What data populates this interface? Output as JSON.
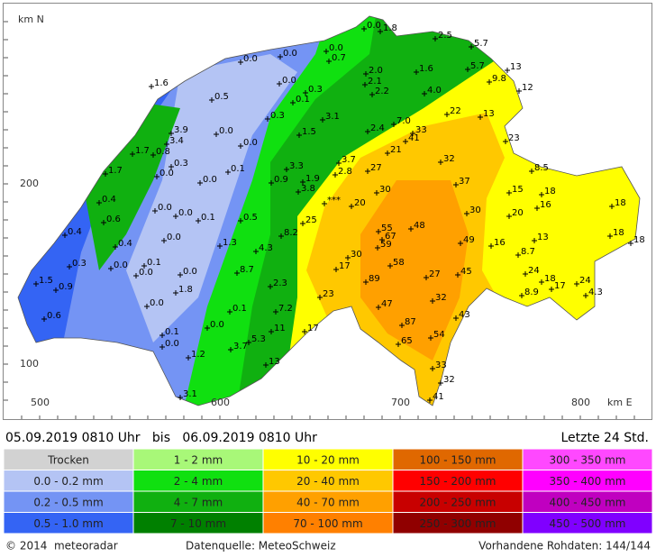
{
  "axes": {
    "north_label": "km N",
    "east_label": "km E",
    "y_ticks": [
      "200",
      "100"
    ],
    "x_ticks": [
      "500",
      "600",
      "700",
      "800"
    ]
  },
  "stations": [
    "0.0",
    "1.8",
    "2.5",
    "5.7",
    "0.0",
    "0.7",
    "0.0",
    "0.0",
    "2.0",
    "1.6",
    "5.7",
    "13",
    "9.8",
    "2.1",
    "12",
    "0.0",
    "0.3",
    "2.2",
    "4.0",
    "1.6",
    "0.5",
    "0.1",
    "22",
    "13",
    "0.3",
    "3.1",
    "7.0",
    "3.9",
    "3.4",
    "0.0",
    "0.0",
    "1.5",
    "2.4",
    "33",
    "41",
    "23",
    "1.7",
    "0.8",
    "0.3",
    "0.0",
    "21",
    "32",
    "8.5",
    "0.1",
    "3.3",
    "3.7",
    "27",
    "1.7",
    "0.0",
    "0.9",
    "1.9",
    "2.8",
    "37",
    "3.8",
    "15",
    "18",
    "30",
    "***",
    "0.4",
    "0.0",
    "20",
    "16",
    "18",
    "0.0",
    "0.1",
    "0.5",
    "0.6",
    "25",
    "30",
    "20",
    "55",
    "67",
    "48",
    "59",
    "0.4",
    "0.0",
    "8.2",
    "1.3",
    "49",
    "16",
    "13",
    "18",
    "18",
    "0.4",
    "4.3",
    "30",
    "8.7",
    "0.3",
    "0.0",
    "0.1",
    "17",
    "58",
    "8.7",
    "0.0",
    "0.0",
    "24",
    "27",
    "45",
    "1.5",
    "0.9",
    "18",
    "24",
    "17",
    "1.8",
    "2.3",
    "89",
    "4.3",
    "8.9",
    "23",
    "32",
    "0.0",
    "47",
    "0.1",
    "7.2",
    "43",
    "87",
    "65",
    "0.6",
    "0.0",
    "11",
    "17",
    "54",
    "0.1",
    "5.3",
    "3.7",
    "0.0",
    "1.2",
    "13",
    "33",
    "32",
    "3.1",
    "41"
  ],
  "header": {
    "period": "05.09.2019 0810 Uhr   bis   06.09.2019 0810 Uhr",
    "window": "Letzte 24 Std."
  },
  "legend": [
    [
      {
        "label": "Trocken",
        "color": "#d2d2d2"
      },
      {
        "label": "0.0 - 0.2 mm",
        "color": "#b4c4f4"
      },
      {
        "label": "0.2 - 0.5 mm",
        "color": "#7494f4"
      },
      {
        "label": "0.5 - 1.0 mm",
        "color": "#3464f4"
      }
    ],
    [
      {
        "label": "1 - 2 mm",
        "color": "#a8f878"
      },
      {
        "label": "2 - 4 mm",
        "color": "#10e010"
      },
      {
        "label": "4 - 7 mm",
        "color": "#10b010"
      },
      {
        "label": "7 - 10 mm",
        "color": "#008000"
      }
    ],
    [
      {
        "label": "10 - 20 mm",
        "color": "#ffff00"
      },
      {
        "label": "20 - 40 mm",
        "color": "#ffc800"
      },
      {
        "label": "40 - 70 mm",
        "color": "#ffa000"
      },
      {
        "label": "70 - 100 mm",
        "color": "#ff8000"
      }
    ],
    [
      {
        "label": "100 - 150 mm",
        "color": "#e06800"
      },
      {
        "label": "150 - 200 mm",
        "color": "#ff0000"
      },
      {
        "label": "200 - 250 mm",
        "color": "#c80000"
      },
      {
        "label": "250 - 300 mm",
        "color": "#900000"
      }
    ],
    [
      {
        "label": "300 - 350 mm",
        "color": "#ff48ff"
      },
      {
        "label": "350 - 400 mm",
        "color": "#ff00ff"
      },
      {
        "label": "400 - 450 mm",
        "color": "#c000c0"
      },
      {
        "label": "450 - 500 mm",
        "color": "#8000ff"
      }
    ]
  ],
  "footer": {
    "copyright": "© 2014  meteoradar",
    "source": "Datenquelle: MeteoSchweiz",
    "raw": "Vorhandene Rohdaten: 144/144"
  }
}
